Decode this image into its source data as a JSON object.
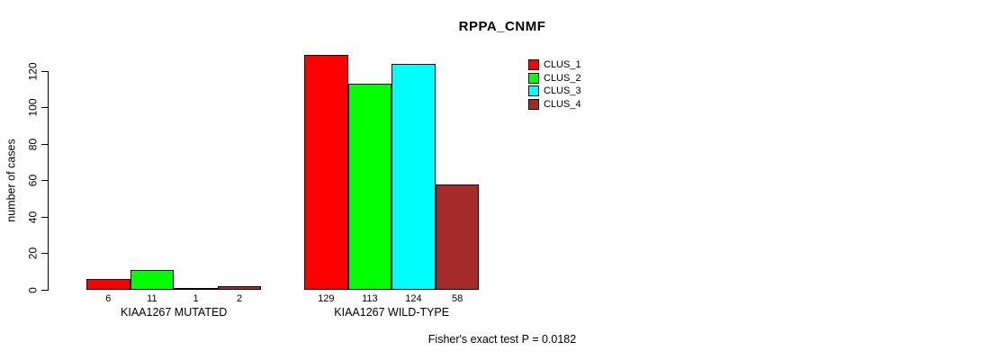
{
  "chart_data": {
    "type": "bar",
    "title": "RPPA_CNMF",
    "ylabel": "number of cases",
    "xlabel": "",
    "ylim": [
      0,
      120
    ],
    "yticks": [
      0,
      20,
      40,
      60,
      80,
      100,
      120
    ],
    "grid": false,
    "legend_position": "top-right",
    "categories": [
      "KIAA1267 MUTATED",
      "KIAA1267 WILD-TYPE"
    ],
    "series": [
      {
        "name": "CLUS_1",
        "color": "#ff0000",
        "values": [
          6,
          129
        ]
      },
      {
        "name": "CLUS_2",
        "color": "#00ff00",
        "values": [
          11,
          113
        ]
      },
      {
        "name": "CLUS_3",
        "color": "#00ffff",
        "values": [
          1,
          124
        ]
      },
      {
        "name": "CLUS_4",
        "color": "#a52a2a",
        "values": [
          2,
          58
        ]
      }
    ],
    "bar_value_labels": [
      [
        "6",
        "11",
        "1",
        "2"
      ],
      [
        "129",
        "113",
        "124",
        "58"
      ]
    ],
    "annotation": "Fisher's exact test P = 0.0182"
  }
}
